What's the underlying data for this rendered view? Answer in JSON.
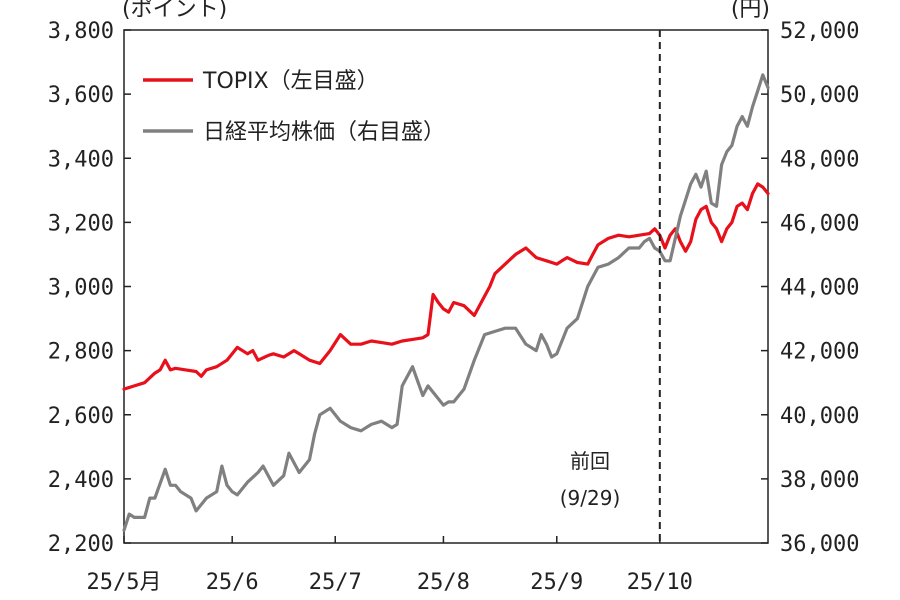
{
  "chart_data": {
    "type": "line",
    "left_unit": "(ポイント)",
    "right_unit": "(円)",
    "y_left": {
      "min": 2200,
      "max": 3800,
      "ticks": [
        "2,200",
        "2,400",
        "2,600",
        "2,800",
        "3,000",
        "3,200",
        "3,400",
        "3,600",
        "3,800"
      ],
      "tick_values": [
        2200,
        2400,
        2600,
        2800,
        3000,
        3200,
        3400,
        3600,
        3800
      ]
    },
    "y_right": {
      "min": 36000,
      "max": 52000,
      "ticks": [
        "36,000",
        "38,000",
        "40,000",
        "42,000",
        "44,000",
        "46,000",
        "48,000",
        "50,000",
        "52,000"
      ],
      "tick_values": [
        36000,
        38000,
        40000,
        42000,
        44000,
        46000,
        48000,
        50000,
        52000
      ]
    },
    "x_range": [
      0,
      125
    ],
    "x_ticks": [
      {
        "pos": 0,
        "label": "25/5月"
      },
      {
        "pos": 21,
        "label": "25/6"
      },
      {
        "pos": 41,
        "label": "25/7"
      },
      {
        "pos": 62,
        "label": "25/8"
      },
      {
        "pos": 84,
        "label": "25/9"
      },
      {
        "pos": 104,
        "label": "25/10"
      }
    ],
    "legend_position": "top-left",
    "colors": {
      "topix": "#e8101a",
      "nikkei": "#808080"
    },
    "series": [
      {
        "name": "TOPIX（左目盛）",
        "axis": "left",
        "color": "#e8101a",
        "x": [
          0,
          2,
          4,
          6,
          7,
          8,
          9,
          10,
          12,
          14,
          15,
          16,
          18,
          20,
          22,
          24,
          25,
          26,
          28,
          29,
          31,
          33,
          34,
          36,
          38,
          40,
          42,
          44,
          46,
          48,
          50,
          52,
          54,
          56,
          58,
          59,
          60,
          61,
          62,
          63,
          64,
          66,
          68,
          70,
          71,
          72,
          74,
          76,
          78,
          80,
          82,
          84,
          85,
          86,
          88,
          90,
          91,
          92,
          94,
          96,
          98,
          100,
          102,
          103,
          104,
          105,
          106,
          107,
          108,
          109,
          110,
          111,
          112,
          113,
          114,
          115,
          116,
          117,
          118,
          119,
          120,
          121,
          122,
          123,
          124,
          125
        ],
        "values": [
          2680,
          2690,
          2700,
          2730,
          2740,
          2770,
          2740,
          2745,
          2740,
          2735,
          2720,
          2740,
          2750,
          2770,
          2810,
          2790,
          2800,
          2770,
          2785,
          2790,
          2780,
          2800,
          2790,
          2770,
          2760,
          2800,
          2850,
          2820,
          2820,
          2830,
          2825,
          2820,
          2830,
          2835,
          2840,
          2850,
          2975,
          2950,
          2930,
          2920,
          2950,
          2940,
          2910,
          2970,
          3000,
          3040,
          3070,
          3100,
          3120,
          3090,
          3080,
          3070,
          3080,
          3090,
          3075,
          3070,
          3100,
          3130,
          3150,
          3160,
          3155,
          3160,
          3165,
          3180,
          3160,
          3120,
          3160,
          3180,
          3140,
          3110,
          3140,
          3210,
          3240,
          3250,
          3200,
          3180,
          3140,
          3180,
          3200,
          3250,
          3260,
          3240,
          3290,
          3320,
          3310,
          3290
        ]
      },
      {
        "name": "日経平均株価（右目盛）",
        "axis": "right",
        "color": "#808080",
        "x": [
          0,
          1,
          2,
          4,
          5,
          6,
          8,
          9,
          10,
          11,
          13,
          14,
          15,
          16,
          18,
          19,
          20,
          21,
          22,
          24,
          26,
          27,
          29,
          31,
          32,
          34,
          36,
          37,
          38,
          40,
          42,
          44,
          46,
          48,
          50,
          52,
          53,
          54,
          56,
          58,
          59,
          60,
          62,
          63,
          64,
          66,
          68,
          70,
          72,
          74,
          76,
          78,
          80,
          81,
          82,
          83,
          84,
          86,
          88,
          90,
          92,
          94,
          96,
          98,
          100,
          101,
          102,
          103,
          104,
          105,
          106,
          107,
          108,
          109,
          110,
          111,
          112,
          113,
          114,
          115,
          116,
          117,
          118,
          119,
          120,
          121,
          122,
          123,
          124,
          125
        ],
        "values": [
          36400,
          36900,
          36800,
          36800,
          37400,
          37400,
          38300,
          37800,
          37800,
          37600,
          37400,
          37000,
          37200,
          37400,
          37600,
          38400,
          37800,
          37600,
          37500,
          37900,
          38200,
          38400,
          37800,
          38100,
          38800,
          38200,
          38600,
          39400,
          40000,
          40200,
          39800,
          39600,
          39500,
          39700,
          39800,
          39600,
          39700,
          40900,
          41500,
          40600,
          40900,
          40700,
          40300,
          40400,
          40400,
          40800,
          41700,
          42500,
          42600,
          42700,
          42700,
          42200,
          42000,
          42500,
          42200,
          41800,
          41900,
          42700,
          43000,
          44000,
          44600,
          44700,
          44900,
          45200,
          45200,
          45400,
          45500,
          45200,
          45100,
          44800,
          44800,
          45500,
          46200,
          46700,
          47200,
          47500,
          47100,
          47600,
          46600,
          46500,
          47800,
          48200,
          48400,
          49000,
          49300,
          49000,
          49600,
          50100,
          50600,
          50200
        ]
      }
    ],
    "annotations": [
      {
        "x": 104,
        "label_line1": "前回",
        "label_line2": "(9/29)",
        "style": "dashed-vertical"
      }
    ]
  }
}
